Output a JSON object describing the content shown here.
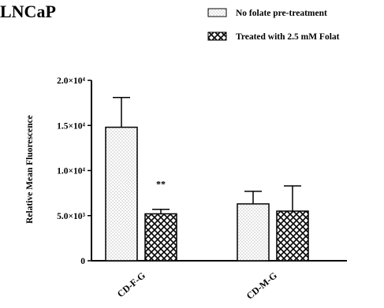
{
  "chart_data": {
    "type": "bar",
    "panel_title": "LNCaP",
    "categories": [
      "CD-F-G",
      "CD-M-G"
    ],
    "series": [
      {
        "name": "No folate pre-treatment",
        "pattern": "dots",
        "values": [
          14800,
          6300
        ],
        "errors": [
          3300,
          1400
        ]
      },
      {
        "name": "Treated with 2.5 mM Folat",
        "pattern": "crosshatch",
        "values": [
          5200,
          5500
        ],
        "errors": [
          500,
          2800
        ]
      }
    ],
    "ylabel": "Relative Mean Fluorescence",
    "xlabel": "",
    "ylim": [
      0,
      20000
    ],
    "yticks": [
      {
        "value": 0,
        "label": "0"
      },
      {
        "value": 5000,
        "label": "5.0×10³"
      },
      {
        "value": 10000,
        "label": "1.0×10⁴"
      },
      {
        "value": 15000,
        "label": "1.5×10⁴"
      },
      {
        "value": 20000,
        "label": "2.0×10⁴"
      }
    ],
    "annotations": [
      {
        "category": "CD-F-G",
        "series": 1,
        "text": "**"
      }
    ],
    "legend_position": "top-right",
    "grid": false
  }
}
